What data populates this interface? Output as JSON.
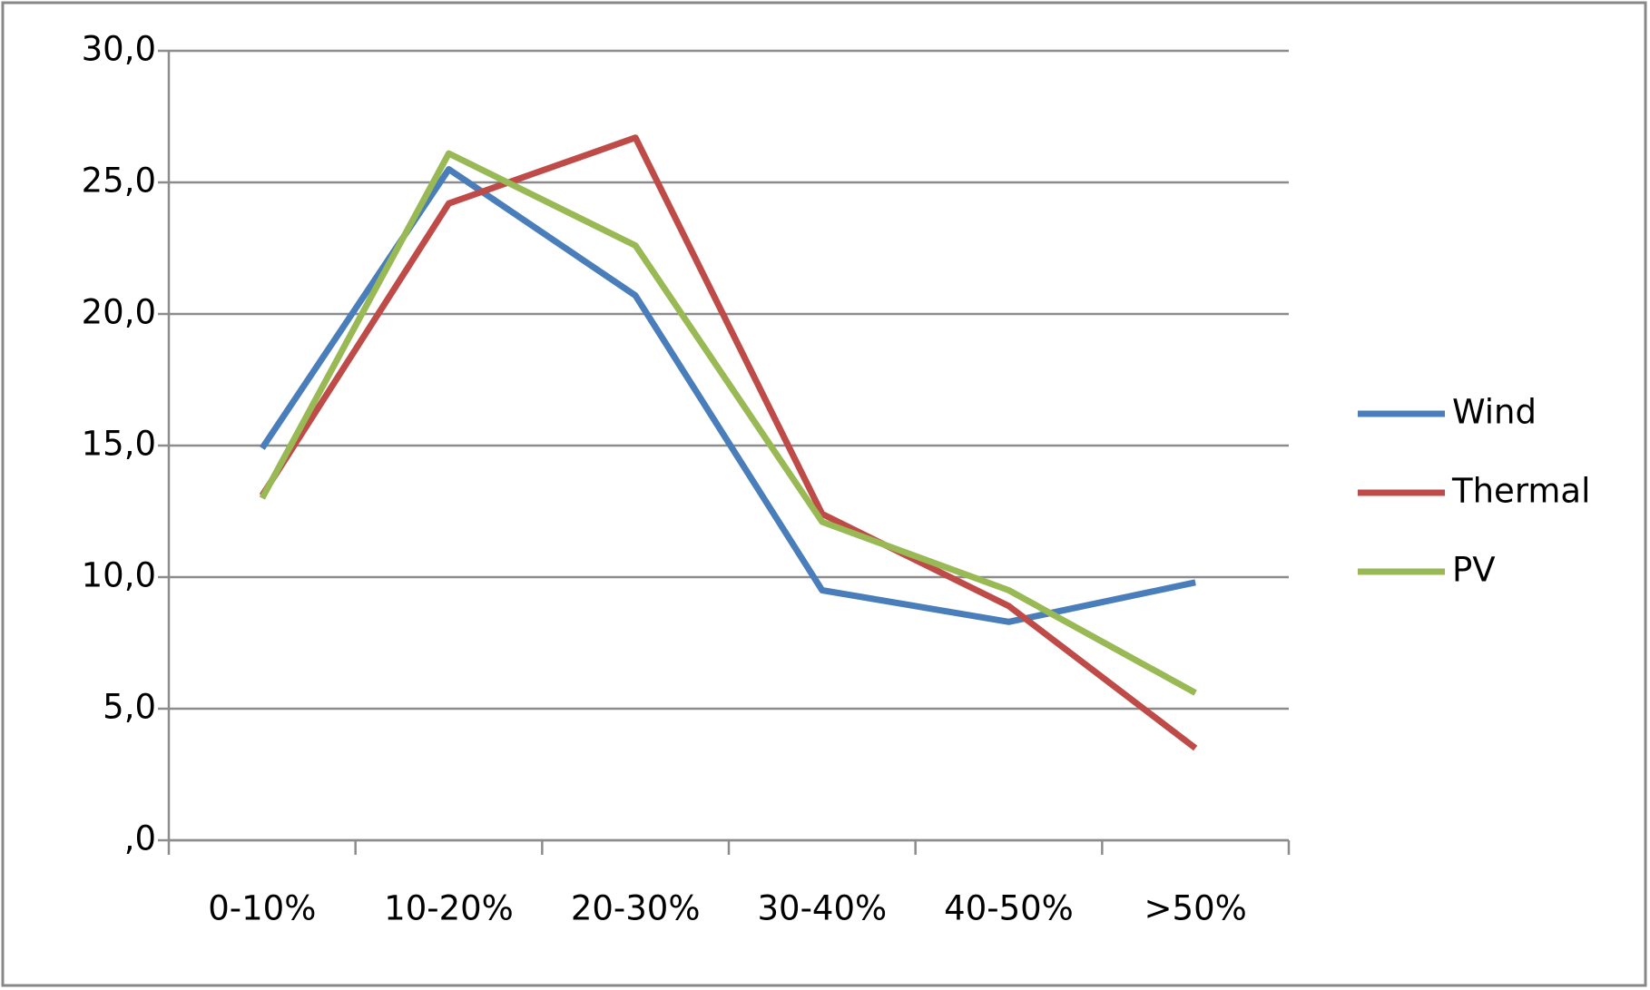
{
  "chart_data": {
    "type": "line",
    "categories": [
      "0-10%",
      "10-20%",
      "20-30%",
      "30-40%",
      "40-50%",
      ">50%"
    ],
    "series": [
      {
        "name": "Wind",
        "color": "#4a7ebb",
        "values": [
          14.9,
          25.5,
          20.7,
          9.5,
          8.3,
          9.8
        ]
      },
      {
        "name": "Thermal",
        "color": "#be4b48",
        "values": [
          13.1,
          24.2,
          26.7,
          12.4,
          8.9,
          3.5
        ]
      },
      {
        "name": "PV",
        "color": "#98b954",
        "values": [
          13.0,
          26.1,
          22.6,
          12.1,
          9.5,
          5.6
        ]
      }
    ],
    "ylim": [
      0,
      30
    ],
    "yticks": [
      {
        "value": 0,
        "label": ",0"
      },
      {
        "value": 5,
        "label": "5,0"
      },
      {
        "value": 10,
        "label": "10,0"
      },
      {
        "value": 15,
        "label": "15,0"
      },
      {
        "value": 20,
        "label": "20,0"
      },
      {
        "value": 25,
        "label": "25,0"
      },
      {
        "value": 30,
        "label": "30,0"
      }
    ],
    "grid": true,
    "legend": "right"
  }
}
